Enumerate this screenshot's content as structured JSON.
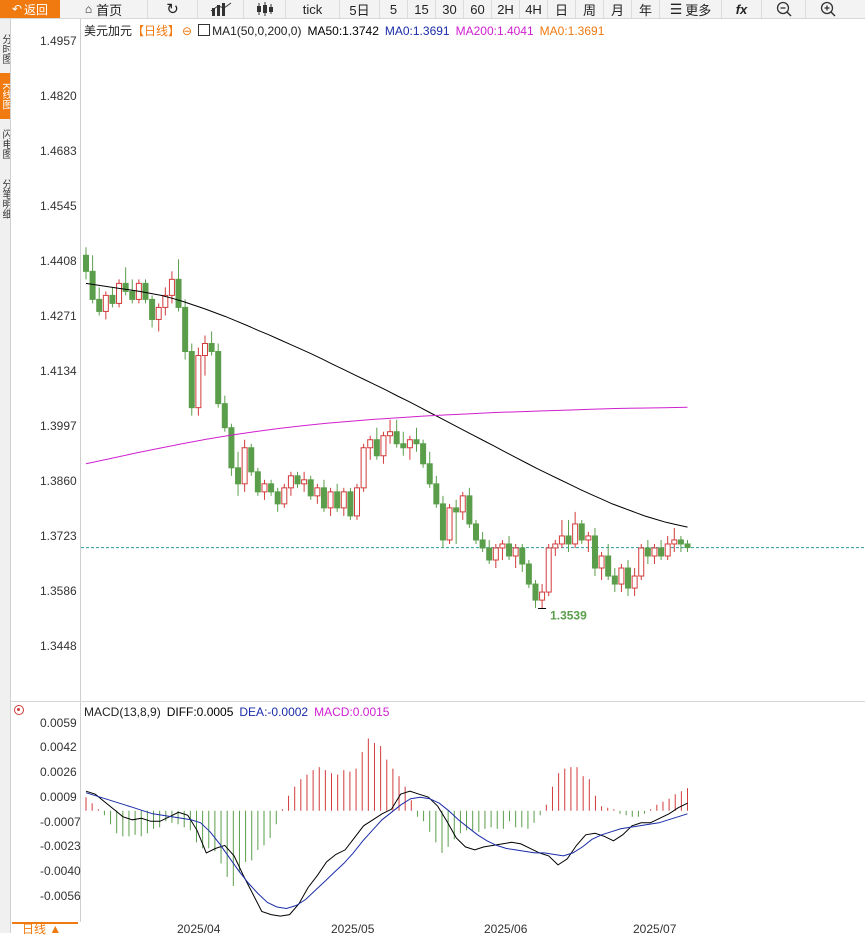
{
  "toolbar": {
    "back": "返回",
    "home": "首页",
    "tick": "tick",
    "periods": [
      "5日",
      "5",
      "15",
      "30",
      "60",
      "2H",
      "4H",
      "日",
      "周",
      "月",
      "年"
    ],
    "more": "更多",
    "fx": "fx"
  },
  "side_tabs": [
    "分时图",
    "K线图",
    "闪电图",
    "分笔明细"
  ],
  "legend": {
    "symbol": "美元加元",
    "period": "【日线】",
    "ma_name": "MA1(50,0,200,0)",
    "ma50": "MA50:1.3742",
    "ma0_a": "MA0:1.3691",
    "ma200": "MA200:1.4041",
    "ma0_b": "MA0:1.3691"
  },
  "colors": {
    "up": "#d23b3b",
    "down": "#5a9e4b",
    "ma50": "#000000",
    "ma200": "#d020d0",
    "accent": "#f07a10",
    "dea": "#1a2ca8"
  },
  "price_axis": [
    "1.4957",
    "1.4820",
    "1.4683",
    "1.4545",
    "1.4408",
    "1.4271",
    "1.4134",
    "1.3997",
    "1.3860",
    "1.3723",
    "1.3586",
    "1.3448"
  ],
  "low_marker": "1.3539",
  "macd_legend": {
    "name": "MACD(13,8,9)",
    "diff": "DIFF:0.0005",
    "dea": "DEA:-0.0002",
    "macd": "MACD:0.0015"
  },
  "macd_axis": [
    "0.0059",
    "0.0042",
    "0.0026",
    "0.0009",
    "-0.0007",
    "-0.0023",
    "-0.0040",
    "-0.0056"
  ],
  "date_labels": [
    "2025/04",
    "2025/05",
    "2025/06",
    "2025/07"
  ],
  "bottom_tab": "日线 ▲",
  "chart_data": {
    "type": "candlestick",
    "current_price": 1.3691,
    "candles": [
      [
        1.442,
        1.444,
        1.436,
        1.438
      ],
      [
        1.438,
        1.442,
        1.43,
        1.431
      ],
      [
        1.431,
        1.434,
        1.427,
        1.428
      ],
      [
        1.428,
        1.433,
        1.426,
        1.432
      ],
      [
        1.432,
        1.434,
        1.429,
        1.43
      ],
      [
        1.43,
        1.436,
        1.429,
        1.435
      ],
      [
        1.435,
        1.439,
        1.432,
        1.433
      ],
      [
        1.433,
        1.436,
        1.43,
        1.431
      ],
      [
        1.431,
        1.436,
        1.43,
        1.435
      ],
      [
        1.435,
        1.436,
        1.43,
        1.431
      ],
      [
        1.431,
        1.432,
        1.424,
        1.426
      ],
      [
        1.426,
        1.43,
        1.423,
        1.429
      ],
      [
        1.429,
        1.434,
        1.427,
        1.432
      ],
      [
        1.432,
        1.438,
        1.43,
        1.436
      ],
      [
        1.436,
        1.441,
        1.428,
        1.429
      ],
      [
        1.429,
        1.431,
        1.416,
        1.418
      ],
      [
        1.418,
        1.42,
        1.402,
        1.404
      ],
      [
        1.404,
        1.419,
        1.402,
        1.417
      ],
      [
        1.417,
        1.422,
        1.412,
        1.42
      ],
      [
        1.42,
        1.423,
        1.417,
        1.418
      ],
      [
        1.418,
        1.42,
        1.404,
        1.405
      ],
      [
        1.405,
        1.407,
        1.398,
        1.399
      ],
      [
        1.399,
        1.4,
        1.387,
        1.389
      ],
      [
        1.389,
        1.393,
        1.382,
        1.385
      ],
      [
        1.385,
        1.396,
        1.383,
        1.394
      ],
      [
        1.394,
        1.395,
        1.387,
        1.388
      ],
      [
        1.388,
        1.389,
        1.382,
        1.383
      ],
      [
        1.383,
        1.386,
        1.381,
        1.385
      ],
      [
        1.385,
        1.386,
        1.382,
        1.383
      ],
      [
        1.383,
        1.384,
        1.378,
        1.38
      ],
      [
        1.38,
        1.385,
        1.379,
        1.384
      ],
      [
        1.384,
        1.388,
        1.382,
        1.387
      ],
      [
        1.387,
        1.388,
        1.384,
        1.385
      ],
      [
        1.385,
        1.388,
        1.383,
        1.386
      ],
      [
        1.386,
        1.387,
        1.381,
        1.382
      ],
      [
        1.382,
        1.385,
        1.38,
        1.384
      ],
      [
        1.384,
        1.386,
        1.378,
        1.379
      ],
      [
        1.379,
        1.384,
        1.377,
        1.383
      ],
      [
        1.383,
        1.385,
        1.378,
        1.379
      ],
      [
        1.379,
        1.384,
        1.377,
        1.383
      ],
      [
        1.383,
        1.384,
        1.376,
        1.377
      ],
      [
        1.377,
        1.385,
        1.376,
        1.384
      ],
      [
        1.384,
        1.395,
        1.383,
        1.394
      ],
      [
        1.394,
        1.397,
        1.391,
        1.396
      ],
      [
        1.396,
        1.399,
        1.391,
        1.392
      ],
      [
        1.392,
        1.398,
        1.39,
        1.397
      ],
      [
        1.397,
        1.401,
        1.395,
        1.398
      ],
      [
        1.398,
        1.401,
        1.394,
        1.395
      ],
      [
        1.395,
        1.398,
        1.392,
        1.394
      ],
      [
        1.394,
        1.397,
        1.391,
        1.396
      ],
      [
        1.396,
        1.399,
        1.393,
        1.395
      ],
      [
        1.395,
        1.396,
        1.389,
        1.39
      ],
      [
        1.39,
        1.393,
        1.384,
        1.385
      ],
      [
        1.385,
        1.387,
        1.379,
        1.38
      ],
      [
        1.38,
        1.382,
        1.369,
        1.371
      ],
      [
        1.371,
        1.38,
        1.37,
        1.379
      ],
      [
        1.379,
        1.381,
        1.37,
        1.378
      ],
      [
        1.378,
        1.383,
        1.376,
        1.382
      ],
      [
        1.382,
        1.384,
        1.374,
        1.375
      ],
      [
        1.375,
        1.376,
        1.37,
        1.371
      ],
      [
        1.371,
        1.373,
        1.368,
        1.369
      ],
      [
        1.369,
        1.371,
        1.365,
        1.366
      ],
      [
        1.366,
        1.37,
        1.364,
        1.369
      ],
      [
        1.369,
        1.371,
        1.366,
        1.37
      ],
      [
        1.37,
        1.372,
        1.366,
        1.367
      ],
      [
        1.367,
        1.37,
        1.364,
        1.369
      ],
      [
        1.369,
        1.37,
        1.363,
        1.365
      ],
      [
        1.365,
        1.366,
        1.359,
        1.36
      ],
      [
        1.36,
        1.361,
        1.354,
        1.356
      ],
      [
        1.356,
        1.36,
        1.3539,
        1.358
      ],
      [
        1.358,
        1.37,
        1.357,
        1.369
      ],
      [
        1.369,
        1.371,
        1.367,
        1.37
      ],
      [
        1.37,
        1.376,
        1.369,
        1.372
      ],
      [
        1.372,
        1.376,
        1.368,
        1.37
      ],
      [
        1.37,
        1.378,
        1.369,
        1.375
      ],
      [
        1.375,
        1.376,
        1.37,
        1.371
      ],
      [
        1.371,
        1.373,
        1.368,
        1.372
      ],
      [
        1.372,
        1.374,
        1.362,
        1.364
      ],
      [
        1.364,
        1.368,
        1.361,
        1.367
      ],
      [
        1.367,
        1.37,
        1.361,
        1.362
      ],
      [
        1.362,
        1.364,
        1.358,
        1.36
      ],
      [
        1.36,
        1.365,
        1.358,
        1.364
      ],
      [
        1.364,
        1.366,
        1.357,
        1.359
      ],
      [
        1.359,
        1.364,
        1.357,
        1.362
      ],
      [
        1.362,
        1.37,
        1.361,
        1.369
      ],
      [
        1.369,
        1.371,
        1.365,
        1.367
      ],
      [
        1.367,
        1.37,
        1.365,
        1.369
      ],
      [
        1.369,
        1.371,
        1.366,
        1.367
      ],
      [
        1.367,
        1.372,
        1.366,
        1.37
      ],
      [
        1.37,
        1.374,
        1.368,
        1.371
      ],
      [
        1.371,
        1.372,
        1.368,
        1.37
      ],
      [
        1.37,
        1.371,
        1.368,
        1.3691
      ]
    ],
    "ma50": [
      1.435,
      1.4346,
      1.4342,
      1.4338,
      1.4334,
      1.433,
      1.4325,
      1.432,
      1.4313,
      1.4305,
      1.4296,
      1.4287,
      1.4277,
      1.4267,
      1.4256,
      1.4245,
      1.4233,
      1.4222,
      1.421,
      1.4198,
      1.4186,
      1.4174,
      1.4161,
      1.4148,
      1.4135,
      1.4122,
      1.4109,
      1.4096,
      1.4083,
      1.4069,
      1.4056,
      1.4042,
      1.4028,
      1.4014,
      1.4,
      1.3986,
      1.3972,
      1.3958,
      1.3944,
      1.393,
      1.3916,
      1.3902,
      1.3888,
      1.3875,
      1.3862,
      1.3849,
      1.3836,
      1.3824,
      1.3812,
      1.38,
      1.379,
      1.378,
      1.377,
      1.3762,
      1.3754,
      1.3748,
      1.3742
    ],
    "ma200": [
      1.39,
      1.3913,
      1.3926,
      1.3938,
      1.395,
      1.3961,
      1.3971,
      1.398,
      1.3988,
      1.3995,
      1.4001,
      1.4006,
      1.4011,
      1.4015,
      1.4019,
      1.4022,
      1.4025,
      1.4028,
      1.403,
      1.4032,
      1.4034,
      1.4036,
      1.4038,
      1.4039,
      1.404,
      1.4041
    ],
    "macd_hist": [
      0.0009,
      0.0005,
      0.0001,
      -0.0003,
      -0.0009,
      -0.0015,
      -0.0017,
      -0.0017,
      -0.0016,
      -0.0017,
      -0.0015,
      -0.0012,
      -0.0011,
      -0.0007,
      -0.0008,
      -0.0009,
      -0.0011,
      -0.0013,
      -0.0021,
      -0.0025,
      -0.0025,
      -0.0027,
      -0.0035,
      -0.0044,
      -0.005,
      -0.0041,
      -0.0034,
      -0.0033,
      -0.0026,
      -0.0023,
      -0.0018,
      -0.0009,
      0.0001,
      0.001,
      0.0016,
      0.0021,
      0.0024,
      0.0027,
      0.0029,
      0.0027,
      0.0025,
      0.0024,
      0.0027,
      0.0026,
      0.0028,
      0.0039,
      0.0048,
      0.0045,
      0.0043,
      0.0034,
      0.0028,
      0.0023,
      0.0016,
      0.0007,
      -0.0004,
      -0.0007,
      -0.0014,
      -0.0021,
      -0.0028,
      -0.0024,
      -0.0019,
      -0.0015,
      -0.0013,
      -0.0013,
      -0.0014,
      -0.0012,
      -0.0011,
      -0.0012,
      -0.0012,
      -0.0007,
      -0.0011,
      -0.0011,
      -0.0012,
      -0.0008,
      -0.0003,
      0.0004,
      0.0016,
      0.0025,
      0.0028,
      0.0029,
      0.0029,
      0.0023,
      0.0021,
      0.001,
      0.0003,
      0.0002,
      0.0001,
      -0.0002,
      -0.0003,
      -0.0004,
      -0.0004,
      -0.0002,
      0.0001,
      0.0004,
      0.0006,
      0.0008,
      0.0011,
      0.0013,
      0.0015
    ],
    "diff": [
      0.0013,
      0.0011,
      0.0006,
      0.0001,
      -0.0004,
      -0.0006,
      -0.0005,
      -0.0007,
      -0.0007,
      -0.0004,
      -0.0001,
      -0.0003,
      -0.0013,
      -0.0028,
      -0.0025,
      -0.0023,
      -0.003,
      -0.0043,
      -0.0055,
      -0.0067,
      -0.0069,
      -0.007,
      -0.0069,
      -0.0062,
      -0.0051,
      -0.0043,
      -0.0034,
      -0.0029,
      -0.0026,
      -0.0018,
      -0.001,
      -0.0006,
      -0.0002,
      0.0001,
      0.0011,
      0.0013,
      0.0011,
      0.0009,
      0.0003,
      -0.0007,
      -0.0018,
      -0.0024,
      -0.0026,
      -0.0024,
      -0.0023,
      -0.0022,
      -0.0021,
      -0.0022,
      -0.0025,
      -0.0028,
      -0.003,
      -0.0036,
      -0.0032,
      -0.0023,
      -0.0016,
      -0.0015,
      -0.0017,
      -0.002,
      -0.0016,
      -0.001,
      -0.0008,
      -0.0008,
      -0.0005,
      -0.0002,
      0.0002,
      0.0005
    ],
    "dea": [
      0.0012,
      0.001,
      0.0008,
      0.0006,
      0.0004,
      0.0002,
      0.0,
      -0.0002,
      -0.0003,
      -0.0004,
      -0.0005,
      -0.0006,
      -0.0008,
      -0.0014,
      -0.0022,
      -0.0031,
      -0.004,
      -0.0048,
      -0.0055,
      -0.0061,
      -0.0064,
      -0.0065,
      -0.0063,
      -0.0059,
      -0.0053,
      -0.0047,
      -0.0041,
      -0.0035,
      -0.0028,
      -0.002,
      -0.0013,
      -0.0006,
      -0.0001,
      0.0004,
      0.0008,
      0.0009,
      0.0008,
      0.0005,
      0.0,
      -0.0006,
      -0.0011,
      -0.0016,
      -0.002,
      -0.0023,
      -0.0025,
      -0.0026,
      -0.0027,
      -0.0028,
      -0.0028,
      -0.0029,
      -0.003,
      -0.0028,
      -0.0024,
      -0.0019,
      -0.0016,
      -0.0014,
      -0.0012,
      -0.0011,
      -0.001,
      -0.0009,
      -0.0008,
      -0.0006,
      -0.0004,
      -0.0002
    ]
  }
}
